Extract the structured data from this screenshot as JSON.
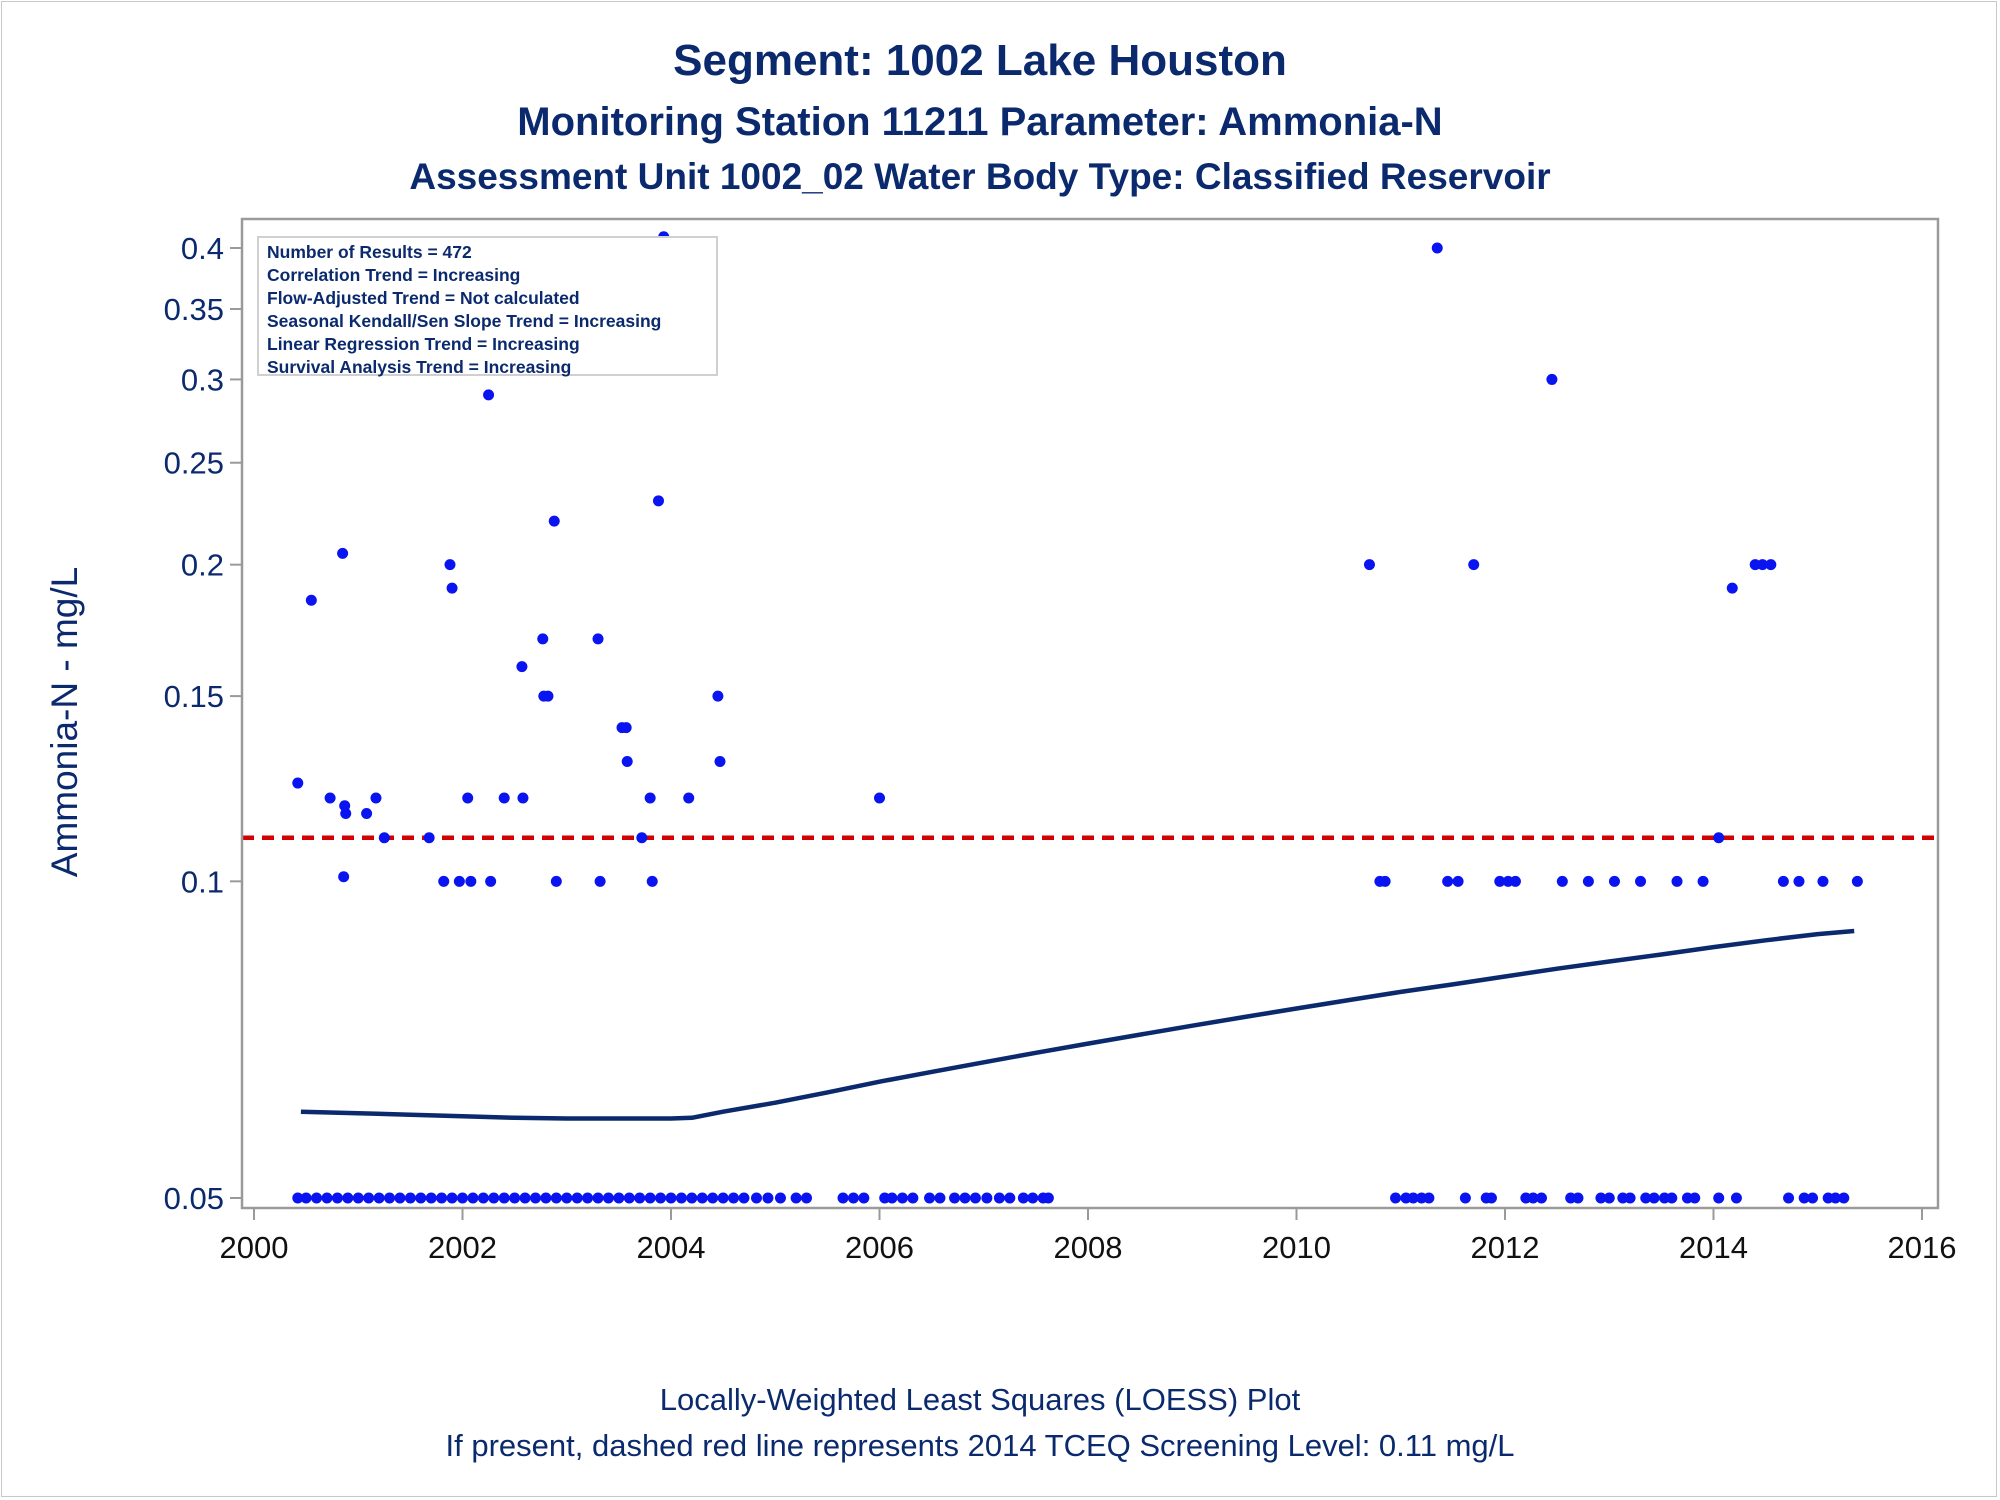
{
  "titles": {
    "line1": "Segment: 1002  Lake Houston",
    "line2": "Monitoring Station 11211 Parameter: Ammonia-N",
    "line3": "Assessment Unit 1002_02   Water Body Type: Classified Reservoir"
  },
  "footnotes": {
    "line1": "Locally-Weighted Least Squares (LOESS) Plot",
    "line2": "If present, dashed red line represents 2014 TCEQ Screening Level: 0.11 mg/L"
  },
  "stats_box": {
    "lines": [
      "Number of Results = 472",
      "Correlation Trend = Increasing",
      "Flow-Adjusted Trend = Not calculated",
      "Seasonal Kendall/Sen Slope Trend = Increasing",
      "Linear Regression Trend = Increasing",
      "Survival Analysis Trend = Increasing"
    ]
  },
  "colors": {
    "points": "#0a14f0",
    "loess": "#0b2a6e",
    "screening": "#d40000",
    "text": "#0b2a6e",
    "axis": "#9a9a9a"
  },
  "chart_data": {
    "type": "scatter",
    "title": "Segment: 1002  Lake Houston",
    "xlabel": "",
    "ylabel": "Ammonia-N - mg/L",
    "y_scale": "log",
    "xlim": [
      2000,
      2016
    ],
    "ylim": [
      0.048,
      0.415
    ],
    "x_ticks": [
      "2000",
      "2002",
      "2004",
      "2006",
      "2008",
      "2010",
      "2012",
      "2014",
      "2016"
    ],
    "y_ticks": [
      "0.4",
      "0.35",
      "0.3",
      "0.25",
      "0.2",
      "0.15",
      "0.1",
      "0.05"
    ],
    "x_tick_values": [
      2000,
      2002,
      2004,
      2006,
      2008,
      2010,
      2012,
      2014,
      2016
    ],
    "y_tick_values": [
      0.4,
      0.35,
      0.3,
      0.25,
      0.2,
      0.15,
      0.1,
      0.05
    ],
    "grid": false,
    "screening_level": 0.11,
    "points": [
      [
        2000.42,
        0.124
      ],
      [
        2000.55,
        0.185
      ],
      [
        2000.73,
        0.12
      ],
      [
        2000.85,
        0.205
      ],
      [
        2000.87,
        0.118
      ],
      [
        2000.88,
        0.116
      ],
      [
        2000.86,
        0.101
      ],
      [
        2001.08,
        0.116
      ],
      [
        2001.17,
        0.12
      ],
      [
        2001.25,
        0.11
      ],
      [
        2001.68,
        0.11
      ],
      [
        2001.82,
        0.1
      ],
      [
        2001.88,
        0.2
      ],
      [
        2001.9,
        0.19
      ],
      [
        2001.97,
        0.1
      ],
      [
        2002.05,
        0.12
      ],
      [
        2002.08,
        0.1
      ],
      [
        2002.25,
        0.29
      ],
      [
        2002.27,
        0.1
      ],
      [
        2002.4,
        0.12
      ],
      [
        2002.57,
        0.16
      ],
      [
        2002.58,
        0.12
      ],
      [
        2002.77,
        0.17
      ],
      [
        2002.78,
        0.15
      ],
      [
        2002.82,
        0.15
      ],
      [
        2002.88,
        0.22
      ],
      [
        2002.9,
        0.1
      ],
      [
        2003.3,
        0.17
      ],
      [
        2003.32,
        0.1
      ],
      [
        2003.53,
        0.14
      ],
      [
        2003.57,
        0.14
      ],
      [
        2003.58,
        0.13
      ],
      [
        2003.72,
        0.11
      ],
      [
        2003.8,
        0.12
      ],
      [
        2003.82,
        0.1
      ],
      [
        2003.88,
        0.23
      ],
      [
        2003.93,
        0.41
      ],
      [
        2004.17,
        0.12
      ],
      [
        2004.45,
        0.15
      ],
      [
        2004.47,
        0.13
      ],
      [
        2006.0,
        0.12
      ],
      [
        2010.7,
        0.2
      ],
      [
        2010.8,
        0.1
      ],
      [
        2010.85,
        0.1
      ],
      [
        2011.35,
        0.4
      ],
      [
        2011.45,
        0.1
      ],
      [
        2011.55,
        0.1
      ],
      [
        2011.7,
        0.2
      ],
      [
        2011.95,
        0.1
      ],
      [
        2012.03,
        0.1
      ],
      [
        2012.1,
        0.1
      ],
      [
        2012.45,
        0.3
      ],
      [
        2012.55,
        0.1
      ],
      [
        2012.8,
        0.1
      ],
      [
        2013.05,
        0.1
      ],
      [
        2013.3,
        0.1
      ],
      [
        2013.65,
        0.1
      ],
      [
        2013.9,
        0.1
      ],
      [
        2014.05,
        0.11
      ],
      [
        2014.18,
        0.19
      ],
      [
        2014.4,
        0.2
      ],
      [
        2014.47,
        0.2
      ],
      [
        2014.55,
        0.2
      ],
      [
        2014.67,
        0.1
      ],
      [
        2014.82,
        0.1
      ],
      [
        2015.05,
        0.1
      ],
      [
        2015.38,
        0.1
      ]
    ],
    "points_at_0_05": [
      2000.42,
      2000.5,
      2000.6,
      2000.7,
      2000.8,
      2000.9,
      2001.0,
      2001.1,
      2001.2,
      2001.3,
      2001.4,
      2001.5,
      2001.6,
      2001.7,
      2001.8,
      2001.9,
      2002.0,
      2002.1,
      2002.2,
      2002.3,
      2002.4,
      2002.5,
      2002.6,
      2002.7,
      2002.8,
      2002.9,
      2003.0,
      2003.1,
      2003.2,
      2003.3,
      2003.4,
      2003.5,
      2003.6,
      2003.7,
      2003.8,
      2003.9,
      2004.0,
      2004.1,
      2004.2,
      2004.3,
      2004.4,
      2004.5,
      2004.6,
      2004.7,
      2004.82,
      2004.93,
      2005.05,
      2005.2,
      2005.3,
      2005.65,
      2005.75,
      2005.85,
      2006.05,
      2006.12,
      2006.22,
      2006.32,
      2006.48,
      2006.58,
      2006.72,
      2006.82,
      2006.92,
      2007.03,
      2007.15,
      2007.25,
      2007.38,
      2007.47,
      2007.57,
      2007.62,
      2010.95,
      2011.05,
      2011.12,
      2011.2,
      2011.27,
      2011.62,
      2011.82,
      2011.87,
      2012.2,
      2012.27,
      2012.35,
      2012.63,
      2012.7,
      2012.92,
      2013.0,
      2013.13,
      2013.2,
      2013.35,
      2013.43,
      2013.53,
      2013.6,
      2013.75,
      2013.82,
      2014.05,
      2014.22,
      2014.72,
      2014.87,
      2014.95,
      2015.1,
      2015.17,
      2015.25
    ],
    "loess": {
      "x": [
        2000.45,
        2001.0,
        2001.5,
        2002.0,
        2002.5,
        2003.0,
        2003.5,
        2004.0,
        2004.2,
        2004.5,
        2005.0,
        2005.5,
        2006.0,
        2006.5,
        2007.0,
        2007.5,
        2008.0,
        2008.5,
        2009.0,
        2009.5,
        2010.0,
        2010.5,
        2011.0,
        2011.5,
        2012.0,
        2012.5,
        2013.0,
        2013.5,
        2014.0,
        2014.5,
        2015.0,
        2015.35
      ],
      "y": [
        0.0604,
        0.0602,
        0.06,
        0.0598,
        0.0596,
        0.0595,
        0.0595,
        0.0595,
        0.0596,
        0.0604,
        0.0616,
        0.063,
        0.0645,
        0.0659,
        0.0673,
        0.0687,
        0.0701,
        0.0715,
        0.0729,
        0.0743,
        0.0757,
        0.0771,
        0.0785,
        0.0798,
        0.0812,
        0.0826,
        0.0839,
        0.0852,
        0.0866,
        0.0879,
        0.0891,
        0.0897
      ]
    }
  }
}
